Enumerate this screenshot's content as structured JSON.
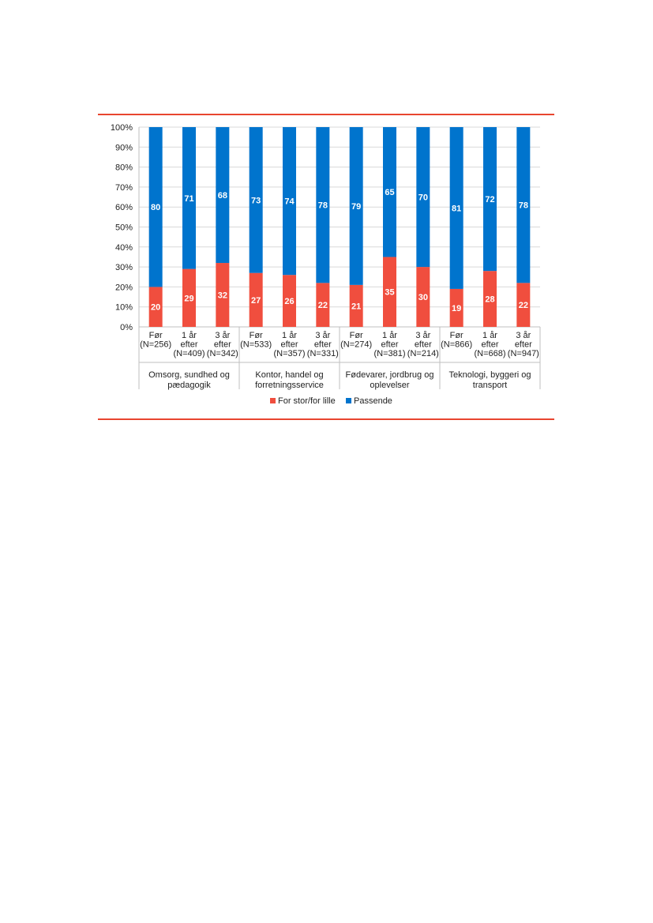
{
  "colors": {
    "accent_rule": "#e8452f",
    "series_red": "#f04e3e",
    "series_blue": "#0074cd",
    "grid": "#d9d9d9"
  },
  "chart_data": {
    "type": "bar",
    "stacked": true,
    "percent_stacked": true,
    "title": "",
    "xlabel": "",
    "ylabel": "",
    "ylim": [
      0,
      100
    ],
    "y_ticks": [
      "0%",
      "10%",
      "20%",
      "30%",
      "40%",
      "50%",
      "60%",
      "70%",
      "80%",
      "90%",
      "100%"
    ],
    "grid": true,
    "legend_position": "bottom",
    "groups": [
      {
        "label": "Omsorg, sundhed og pædagogik",
        "categories": [
          {
            "line1": "Før",
            "line2": "(N=256)",
            "line3": ""
          },
          {
            "line1": "1 år",
            "line2": "efter",
            "line3": "(N=409)"
          },
          {
            "line1": "3 år",
            "line2": "efter",
            "line3": "(N=342)"
          }
        ]
      },
      {
        "label": "Kontor, handel og forretningsservice",
        "categories": [
          {
            "line1": "Før",
            "line2": "(N=533)",
            "line3": ""
          },
          {
            "line1": "1 år",
            "line2": "efter",
            "line3": "(N=357)"
          },
          {
            "line1": "3 år",
            "line2": "efter",
            "line3": "(N=331)"
          }
        ]
      },
      {
        "label": "Fødevarer, jordbrug og oplevelser",
        "categories": [
          {
            "line1": "Før",
            "line2": "(N=274)",
            "line3": ""
          },
          {
            "line1": "1 år",
            "line2": "efter",
            "line3": "(N=381)"
          },
          {
            "line1": "3 år",
            "line2": "efter",
            "line3": "(N=214)"
          }
        ]
      },
      {
        "label": "Teknologi, byggeri og transport",
        "categories": [
          {
            "line1": "Før",
            "line2": "(N=866)",
            "line3": ""
          },
          {
            "line1": "1 år",
            "line2": "efter",
            "line3": "(N=668)"
          },
          {
            "line1": "3 år",
            "line2": "efter",
            "line3": "(N=947)"
          }
        ]
      }
    ],
    "series": [
      {
        "name": "For stor/for lille",
        "color": "#f04e3e",
        "values": [
          20,
          29,
          32,
          27,
          26,
          22,
          21,
          35,
          30,
          19,
          28,
          22
        ]
      },
      {
        "name": "Passende",
        "color": "#0074cd",
        "values": [
          80,
          71,
          68,
          73,
          74,
          78,
          79,
          65,
          70,
          81,
          72,
          78
        ]
      }
    ]
  }
}
